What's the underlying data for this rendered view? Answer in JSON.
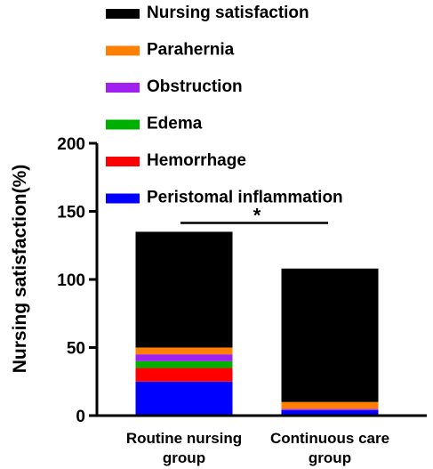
{
  "chart_data": {
    "type": "bar",
    "stacked": true,
    "title": "",
    "xlabel": "",
    "ylabel": "Nursing satisfaction(%)",
    "ylim": [
      0,
      200
    ],
    "yticks": [
      0,
      50,
      100,
      150,
      200
    ],
    "categories": [
      [
        "Routine nursing",
        "group"
      ],
      [
        "Continuous care",
        "group"
      ]
    ],
    "series": [
      {
        "name": "Peristomal inflammation",
        "color": "#0000ff",
        "values": [
          25,
          4
        ]
      },
      {
        "name": "Hemorrhage",
        "color": "#ff0000",
        "values": [
          10,
          0
        ]
      },
      {
        "name": "Edema",
        "color": "#00b000",
        "values": [
          5,
          0
        ]
      },
      {
        "name": "Obstruction",
        "color": "#a020f0",
        "values": [
          5,
          1
        ]
      },
      {
        "name": "Parahernia",
        "color": "#ff8000",
        "values": [
          5,
          5
        ]
      },
      {
        "name": "Nursing satisfaction",
        "color": "#000000",
        "values": [
          85,
          98
        ]
      }
    ],
    "legend_order": [
      "Nursing satisfaction",
      "Parahernia",
      "Obstruction",
      "Edema",
      "Hemorrhage",
      "Peristomal inflammation"
    ],
    "legend_position": "top",
    "grid": false,
    "annotations": [
      {
        "text": "*",
        "type": "significance-bracket",
        "between": [
          0,
          1
        ]
      }
    ]
  }
}
